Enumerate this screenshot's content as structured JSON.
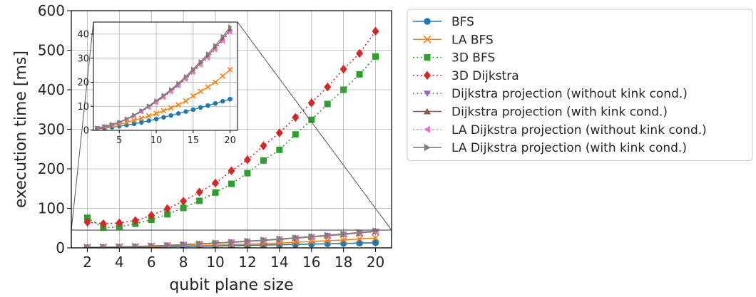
{
  "chart_data": [
    {
      "type": "line",
      "panel": "main",
      "xlabel": "qubit plane size",
      "ylabel": "execution time [ms]",
      "xlim": [
        1,
        21
      ],
      "ylim": [
        0,
        600
      ],
      "xticks": [
        2,
        4,
        6,
        8,
        10,
        12,
        14,
        16,
        18,
        20
      ],
      "yticks": [
        0,
        100,
        200,
        300,
        400,
        500,
        600
      ],
      "grid": true,
      "legend_position": "outside right",
      "x": [
        2,
        3,
        4,
        5,
        6,
        7,
        8,
        9,
        10,
        11,
        12,
        13,
        14,
        15,
        16,
        17,
        18,
        19,
        20
      ],
      "series": [
        {
          "name": "BFS",
          "color": "#1f77b4",
          "marker": "circle",
          "linestyle": "solid",
          "values": [
            0.6,
            0.9,
            1.3,
            1.7,
            2.2,
            2.7,
            3.3,
            4.0,
            4.7,
            5.4,
            6.2,
            7.0,
            7.8,
            8.6,
            9.5,
            10.3,
            11.2,
            12.1,
            13.0
          ]
        },
        {
          "name": "LA BFS",
          "color": "#ff7f0e",
          "marker": "x",
          "linestyle": "solid",
          "values": [
            0.8,
            1.3,
            1.9,
            2.5,
            3.3,
            4.2,
            5.0,
            6.0,
            7.0,
            8.2,
            9.3,
            10.6,
            12.2,
            14.3,
            16.2,
            18.0,
            20.0,
            22.6,
            25.2
          ]
        },
        {
          "name": "3D BFS",
          "color": "#2ca02c",
          "marker": "square",
          "linestyle": "dotted",
          "values": [
            76,
            51,
            53,
            61,
            71,
            85,
            101,
            119,
            140,
            162,
            189,
            221,
            248,
            287,
            324,
            364,
            400,
            439,
            484
          ]
        },
        {
          "name": "3D Dijkstra",
          "color": "#d62728",
          "marker": "diamond",
          "linestyle": "dotted",
          "values": [
            65,
            61,
            63,
            69,
            82,
            99,
            118,
            141,
            164,
            195,
            223,
            258,
            291,
            330,
            367,
            407,
            452,
            492,
            548
          ]
        },
        {
          "name": "Dijkstra projection (without kink cond.)",
          "color": "#9467bd",
          "marker": "triangle-down",
          "linestyle": "dotted",
          "values": [
            0.9,
            1.5,
            2.2,
            3.2,
            4.5,
            6.0,
            7.8,
            9.6,
            11.6,
            13.8,
            16.1,
            18.6,
            21.3,
            24.2,
            27.3,
            30.3,
            33.7,
            37.4,
            41.3
          ]
        },
        {
          "name": "Dijkstra projection (with kink cond.)",
          "color": "#8c564b",
          "marker": "triangle-up",
          "linestyle": "solid",
          "values": [
            0.9,
            1.6,
            2.3,
            3.3,
            4.6,
            6.2,
            8.0,
            9.9,
            11.9,
            14.1,
            16.5,
            19.0,
            21.8,
            24.8,
            27.9,
            31.0,
            34.4,
            38.1,
            42.0
          ]
        },
        {
          "name": "LA Dijkstra projection (without kink cond.)",
          "color": "#e377c2",
          "marker": "triangle-left",
          "linestyle": "dotted",
          "values": [
            0.8,
            1.5,
            2.2,
            3.1,
            4.4,
            5.9,
            7.6,
            9.4,
            11.4,
            13.6,
            15.9,
            18.4,
            21.1,
            24.0,
            27.0,
            30.0,
            33.4,
            37.0,
            40.8
          ]
        },
        {
          "name": "LA Dijkstra projection (with kink cond.)",
          "color": "#7f7f7f",
          "marker": "triangle-right",
          "linestyle": "solid",
          "values": [
            1.0,
            1.7,
            2.5,
            3.5,
            4.8,
            6.4,
            8.2,
            10.2,
            12.3,
            14.6,
            17.0,
            19.6,
            22.4,
            25.5,
            28.6,
            31.8,
            35.3,
            39.0,
            43.0
          ]
        }
      ]
    },
    {
      "type": "line",
      "panel": "inset",
      "xlim": [
        1.5,
        21
      ],
      "ylim": [
        0,
        45
      ],
      "xticks": [
        5,
        10,
        15,
        20
      ],
      "yticks": [
        0,
        10,
        20,
        30,
        40
      ],
      "grid": true,
      "note": "zoomed view of the lower eight series over 0–45 ms"
    }
  ]
}
